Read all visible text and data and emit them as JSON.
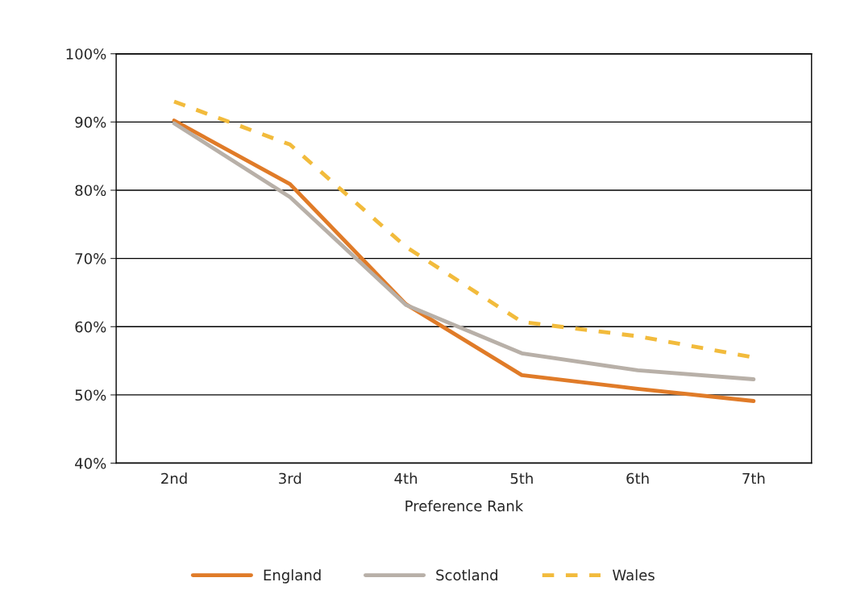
{
  "chart_data": {
    "type": "line",
    "xlabel": "Preference Rank",
    "categories": [
      "2nd",
      "3rd",
      "4th",
      "5th",
      "6th",
      "7th"
    ],
    "series": [
      {
        "name": "England",
        "color": "#e07b28",
        "line_style": "solid",
        "values": [
          90.2,
          80.9,
          63.3,
          52.9,
          50.9,
          49.1
        ]
      },
      {
        "name": "Scotland",
        "color": "#b8b0a8",
        "line_style": "solid",
        "values": [
          89.8,
          79,
          63.2,
          56.1,
          53.6,
          52.3
        ]
      },
      {
        "name": "Wales",
        "color": "#f2bb3c",
        "line_style": "dashed",
        "values": [
          93,
          86.7,
          71.7,
          60.7,
          58.6,
          55.5
        ]
      }
    ],
    "ylim": [
      40,
      100
    ],
    "yticks": [
      {
        "value": 40,
        "label": "40%"
      },
      {
        "value": 50,
        "label": "50%"
      },
      {
        "value": 60,
        "label": "60%"
      },
      {
        "value": 70,
        "label": "70%"
      },
      {
        "value": 80,
        "label": "80%"
      },
      {
        "value": 90,
        "label": "90%"
      },
      {
        "value": 100,
        "label": "100%"
      }
    ],
    "grid": "y",
    "legend": "bottom",
    "marker": "none"
  }
}
